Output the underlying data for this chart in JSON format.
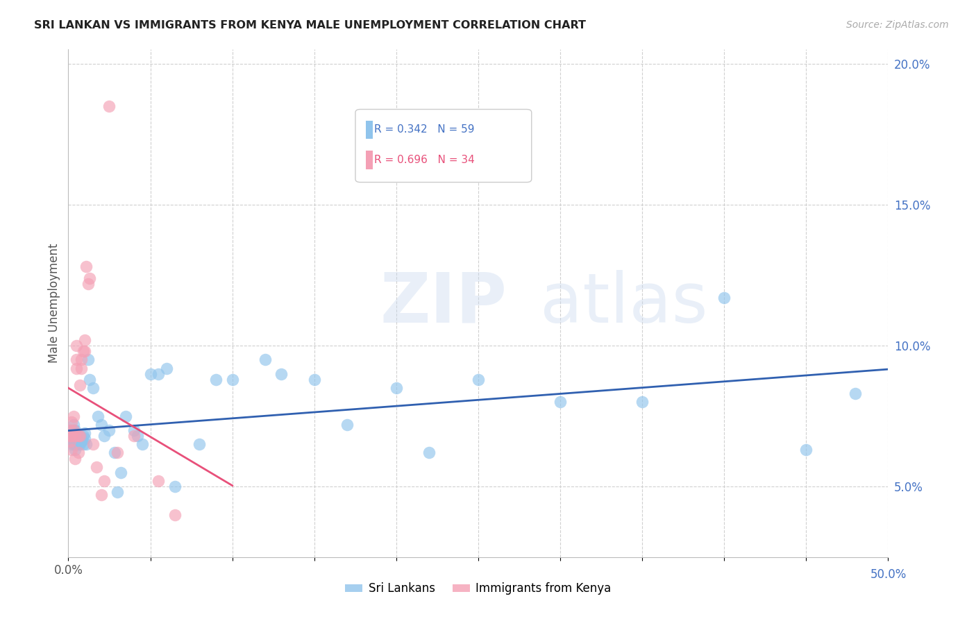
{
  "title": "SRI LANKAN VS IMMIGRANTS FROM KENYA MALE UNEMPLOYMENT CORRELATION CHART",
  "source": "Source: ZipAtlas.com",
  "ylabel": "Male Unemployment",
  "xlim": [
    0.0,
    0.5
  ],
  "ylim": [
    0.025,
    0.205
  ],
  "xtick_positions": [
    0.0,
    0.05,
    0.1,
    0.15,
    0.2,
    0.25,
    0.3,
    0.35,
    0.4,
    0.45,
    0.5
  ],
  "ytick_positions": [
    0.05,
    0.1,
    0.15,
    0.2
  ],
  "yticklabels": [
    "5.0%",
    "10.0%",
    "15.0%",
    "20.0%"
  ],
  "sri_lanka_R": 0.342,
  "sri_lanka_N": 59,
  "kenya_R": 0.696,
  "kenya_N": 34,
  "sri_lanka_color": "#90C4EC",
  "kenya_color": "#F4A0B5",
  "trend_blue": "#3060B0",
  "trend_pink": "#E8507A",
  "legend_label_sri": "Sri Lankans",
  "legend_label_kenya": "Immigrants from Kenya",
  "sri_lanka_x": [
    0.001,
    0.001,
    0.002,
    0.002,
    0.003,
    0.003,
    0.003,
    0.003,
    0.004,
    0.004,
    0.004,
    0.004,
    0.005,
    0.005,
    0.005,
    0.006,
    0.006,
    0.007,
    0.007,
    0.008,
    0.008,
    0.009,
    0.009,
    0.01,
    0.01,
    0.011,
    0.012,
    0.013,
    0.015,
    0.018,
    0.02,
    0.022,
    0.025,
    0.028,
    0.03,
    0.032,
    0.035,
    0.04,
    0.042,
    0.045,
    0.05,
    0.055,
    0.06,
    0.065,
    0.08,
    0.09,
    0.1,
    0.12,
    0.13,
    0.15,
    0.17,
    0.2,
    0.22,
    0.25,
    0.3,
    0.35,
    0.4,
    0.45,
    0.48
  ],
  "sri_lanka_y": [
    0.066,
    0.068,
    0.07,
    0.065,
    0.068,
    0.07,
    0.072,
    0.065,
    0.066,
    0.068,
    0.07,
    0.063,
    0.065,
    0.068,
    0.067,
    0.068,
    0.065,
    0.065,
    0.068,
    0.067,
    0.066,
    0.068,
    0.065,
    0.067,
    0.069,
    0.065,
    0.095,
    0.088,
    0.085,
    0.075,
    0.072,
    0.068,
    0.07,
    0.062,
    0.048,
    0.055,
    0.075,
    0.07,
    0.068,
    0.065,
    0.09,
    0.09,
    0.092,
    0.05,
    0.065,
    0.088,
    0.088,
    0.095,
    0.09,
    0.088,
    0.072,
    0.085,
    0.062,
    0.088,
    0.08,
    0.08,
    0.117,
    0.063,
    0.083
  ],
  "kenya_x": [
    0.001,
    0.001,
    0.001,
    0.002,
    0.002,
    0.002,
    0.003,
    0.003,
    0.004,
    0.004,
    0.005,
    0.005,
    0.005,
    0.006,
    0.006,
    0.007,
    0.007,
    0.008,
    0.008,
    0.009,
    0.01,
    0.01,
    0.011,
    0.012,
    0.013,
    0.015,
    0.017,
    0.02,
    0.022,
    0.025,
    0.03,
    0.04,
    0.055,
    0.065
  ],
  "kenya_y": [
    0.066,
    0.068,
    0.07,
    0.063,
    0.068,
    0.073,
    0.07,
    0.075,
    0.068,
    0.06,
    0.095,
    0.1,
    0.092,
    0.062,
    0.068,
    0.086,
    0.068,
    0.092,
    0.095,
    0.098,
    0.102,
    0.098,
    0.128,
    0.122,
    0.124,
    0.065,
    0.057,
    0.047,
    0.052,
    0.185,
    0.062,
    0.068,
    0.052,
    0.04
  ]
}
